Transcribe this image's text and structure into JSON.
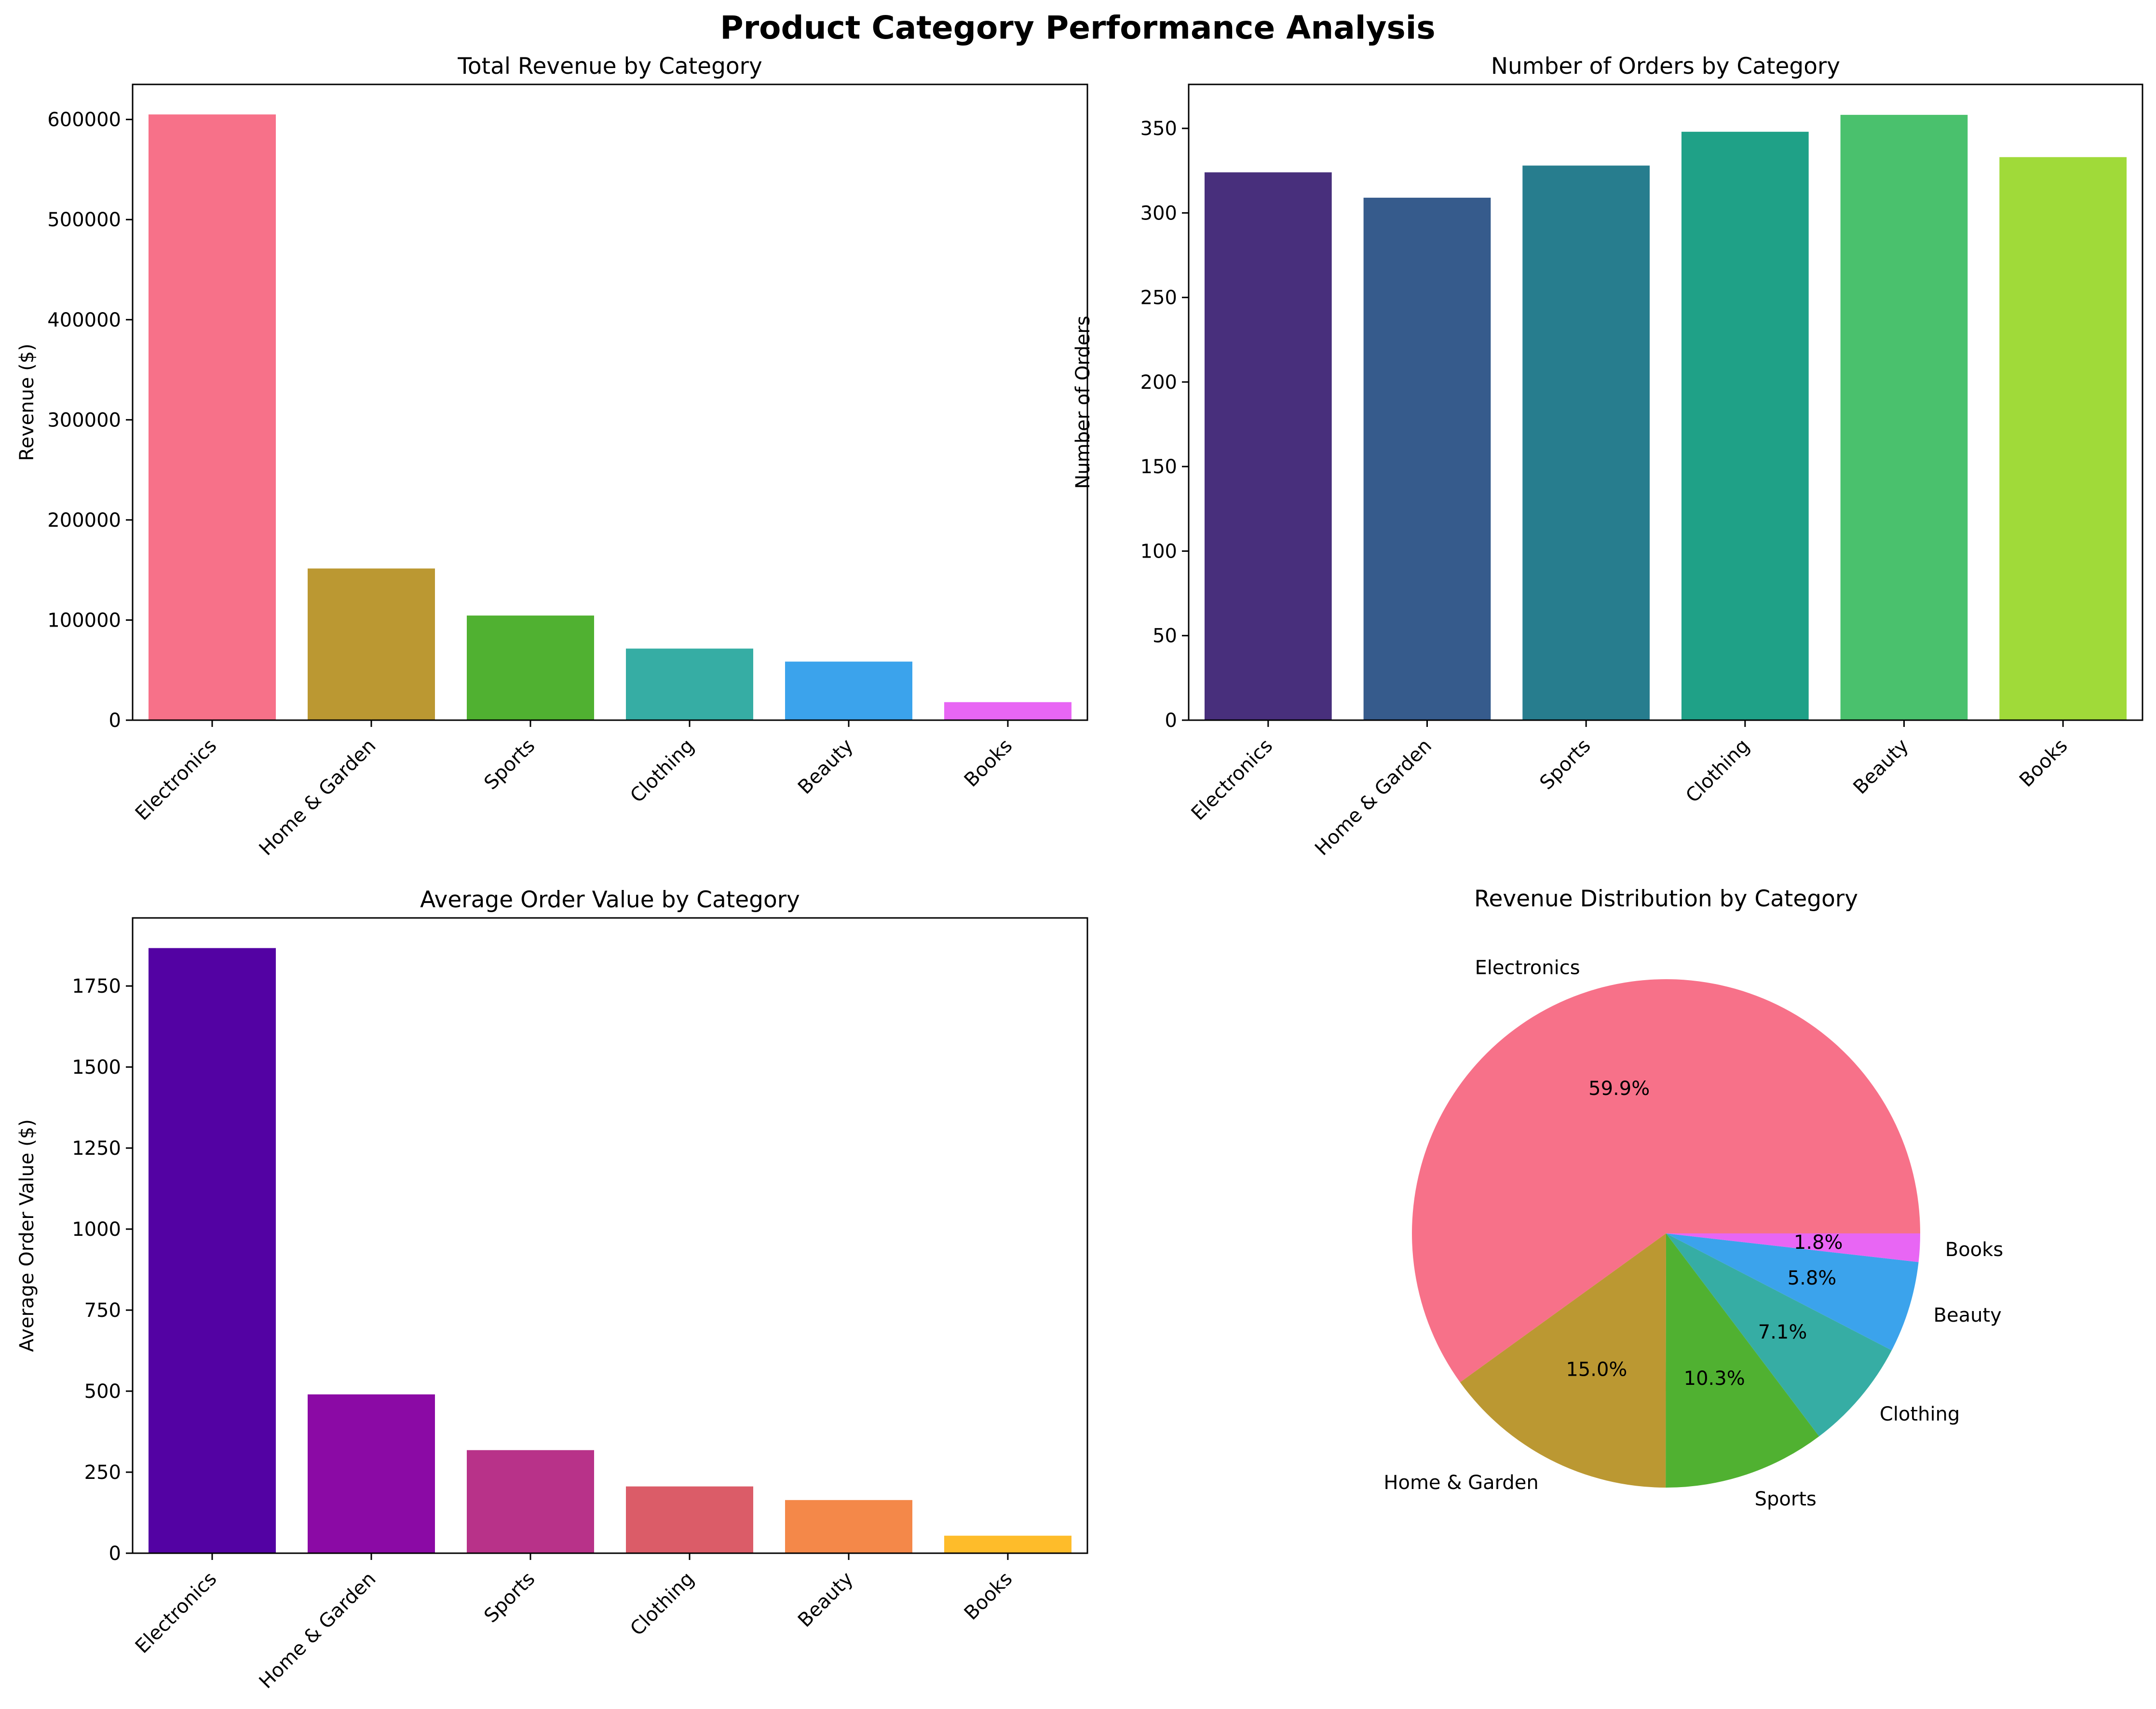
{
  "title": "Product Category Performance Analysis",
  "chart_data": [
    {
      "type": "bar",
      "title": "Total Revenue by Category",
      "xlabel": "",
      "ylabel": "Revenue ($)",
      "categories": [
        "Electronics",
        "Home & Garden",
        "Sports",
        "Clothing",
        "Beauty",
        "Books"
      ],
      "values": [
        605000,
        151500,
        104500,
        71500,
        58500,
        18000
      ],
      "ylim": [
        0,
        635000
      ],
      "yticks": [
        0,
        100000,
        200000,
        300000,
        400000,
        500000,
        600000
      ],
      "colors": [
        "#f77189",
        "#bb9832",
        "#50b131",
        "#36ada4",
        "#3ba3ec",
        "#e866f4"
      ],
      "grid": false
    },
    {
      "type": "bar",
      "title": "Number of Orders by Category",
      "xlabel": "",
      "ylabel": "Number of Orders",
      "categories": [
        "Electronics",
        "Home & Garden",
        "Sports",
        "Clothing",
        "Beauty",
        "Books"
      ],
      "values": [
        324,
        309,
        328,
        348,
        358,
        333
      ],
      "ylim": [
        0,
        376
      ],
      "yticks": [
        0,
        50,
        100,
        150,
        200,
        250,
        300,
        350
      ],
      "colors": [
        "#482f7c",
        "#365b8c",
        "#277d8e",
        "#1fa187",
        "#4ac16d",
        "#a0da39"
      ],
      "grid": false
    },
    {
      "type": "bar",
      "title": "Average Order Value by Category",
      "xlabel": "",
      "ylabel": "Average Order Value ($)",
      "categories": [
        "Electronics",
        "Home & Garden",
        "Sports",
        "Clothing",
        "Beauty",
        "Books"
      ],
      "values": [
        1867,
        490,
        318,
        206,
        164,
        54
      ],
      "ylim": [
        0,
        1960
      ],
      "yticks": [
        0,
        250,
        500,
        750,
        1000,
        1250,
        1500,
        1750
      ],
      "colors": [
        "#5302a3",
        "#8b0aa5",
        "#b83289",
        "#db5c68",
        "#f48849",
        "#febc2a"
      ],
      "grid": false
    },
    {
      "type": "pie",
      "title": "Revenue Distribution by Category",
      "labels": [
        "Electronics",
        "Home & Garden",
        "Sports",
        "Clothing",
        "Beauty",
        "Books"
      ],
      "values": [
        59.9,
        15.0,
        10.3,
        7.1,
        5.8,
        1.8
      ],
      "pct_labels": [
        "59.9%",
        "15.0%",
        "10.3%",
        "7.1%",
        "5.8%",
        "1.8%"
      ],
      "colors": [
        "#f77189",
        "#bb9832",
        "#50b131",
        "#36ada4",
        "#3ba3ec",
        "#e866f4"
      ]
    }
  ]
}
